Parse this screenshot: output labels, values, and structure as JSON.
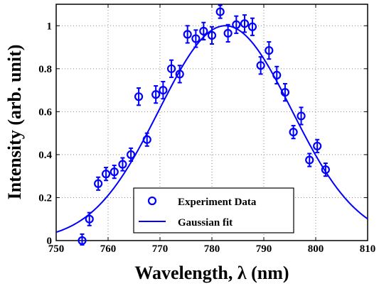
{
  "chart_data": {
    "type": "scatter",
    "title": "",
    "xlabel": "Wavelength, λ (nm)",
    "ylabel": "Intensity (arb. unit)",
    "xlim": [
      750,
      810
    ],
    "ylim": [
      0,
      1.1
    ],
    "xticks": [
      "750",
      "760",
      "770",
      "780",
      "790",
      "800",
      "810"
    ],
    "yticks": [
      "0",
      "0.2",
      "0.4",
      "0.6",
      "0.8",
      "1"
    ],
    "grid": true,
    "legend_position": "bottom-center",
    "colors": {
      "series": "#0000ff",
      "axis": "#000000"
    },
    "series": [
      {
        "name": "Experiment Data",
        "marker": "open-circle",
        "error_bars": true,
        "points": [
          {
            "x": 755.0,
            "y": 0.0,
            "err": 0.03
          },
          {
            "x": 756.4,
            "y": 0.1,
            "err": 0.03
          },
          {
            "x": 758.1,
            "y": 0.265,
            "err": 0.03
          },
          {
            "x": 759.6,
            "y": 0.31,
            "err": 0.03
          },
          {
            "x": 761.2,
            "y": 0.32,
            "err": 0.03
          },
          {
            "x": 762.8,
            "y": 0.355,
            "err": 0.03
          },
          {
            "x": 764.4,
            "y": 0.4,
            "err": 0.03
          },
          {
            "x": 765.9,
            "y": 0.67,
            "err": 0.04
          },
          {
            "x": 767.5,
            "y": 0.47,
            "err": 0.03
          },
          {
            "x": 769.2,
            "y": 0.68,
            "err": 0.04
          },
          {
            "x": 770.6,
            "y": 0.7,
            "err": 0.04
          },
          {
            "x": 772.2,
            "y": 0.8,
            "err": 0.04
          },
          {
            "x": 773.8,
            "y": 0.775,
            "err": 0.04
          },
          {
            "x": 775.3,
            "y": 0.96,
            "err": 0.04
          },
          {
            "x": 776.9,
            "y": 0.94,
            "err": 0.04
          },
          {
            "x": 778.4,
            "y": 0.975,
            "err": 0.04
          },
          {
            "x": 780.0,
            "y": 0.955,
            "err": 0.04
          },
          {
            "x": 781.6,
            "y": 1.065,
            "err": 0.03
          },
          {
            "x": 783.1,
            "y": 0.965,
            "err": 0.04
          },
          {
            "x": 784.7,
            "y": 1.005,
            "err": 0.04
          },
          {
            "x": 786.3,
            "y": 1.01,
            "err": 0.04
          },
          {
            "x": 787.8,
            "y": 0.995,
            "err": 0.04
          },
          {
            "x": 789.4,
            "y": 0.815,
            "err": 0.04
          },
          {
            "x": 791.0,
            "y": 0.885,
            "err": 0.04
          },
          {
            "x": 792.5,
            "y": 0.77,
            "err": 0.04
          },
          {
            "x": 794.1,
            "y": 0.69,
            "err": 0.04
          },
          {
            "x": 795.7,
            "y": 0.505,
            "err": 0.03
          },
          {
            "x": 797.2,
            "y": 0.58,
            "err": 0.04
          },
          {
            "x": 798.8,
            "y": 0.375,
            "err": 0.03
          },
          {
            "x": 800.3,
            "y": 0.44,
            "err": 0.03
          },
          {
            "x": 801.9,
            "y": 0.33,
            "err": 0.03
          }
        ]
      },
      {
        "name": "Gaussian fit",
        "style": "line",
        "model": {
          "amplitude": 1.0,
          "center": 782.6,
          "sigma": 12.8
        }
      }
    ]
  }
}
